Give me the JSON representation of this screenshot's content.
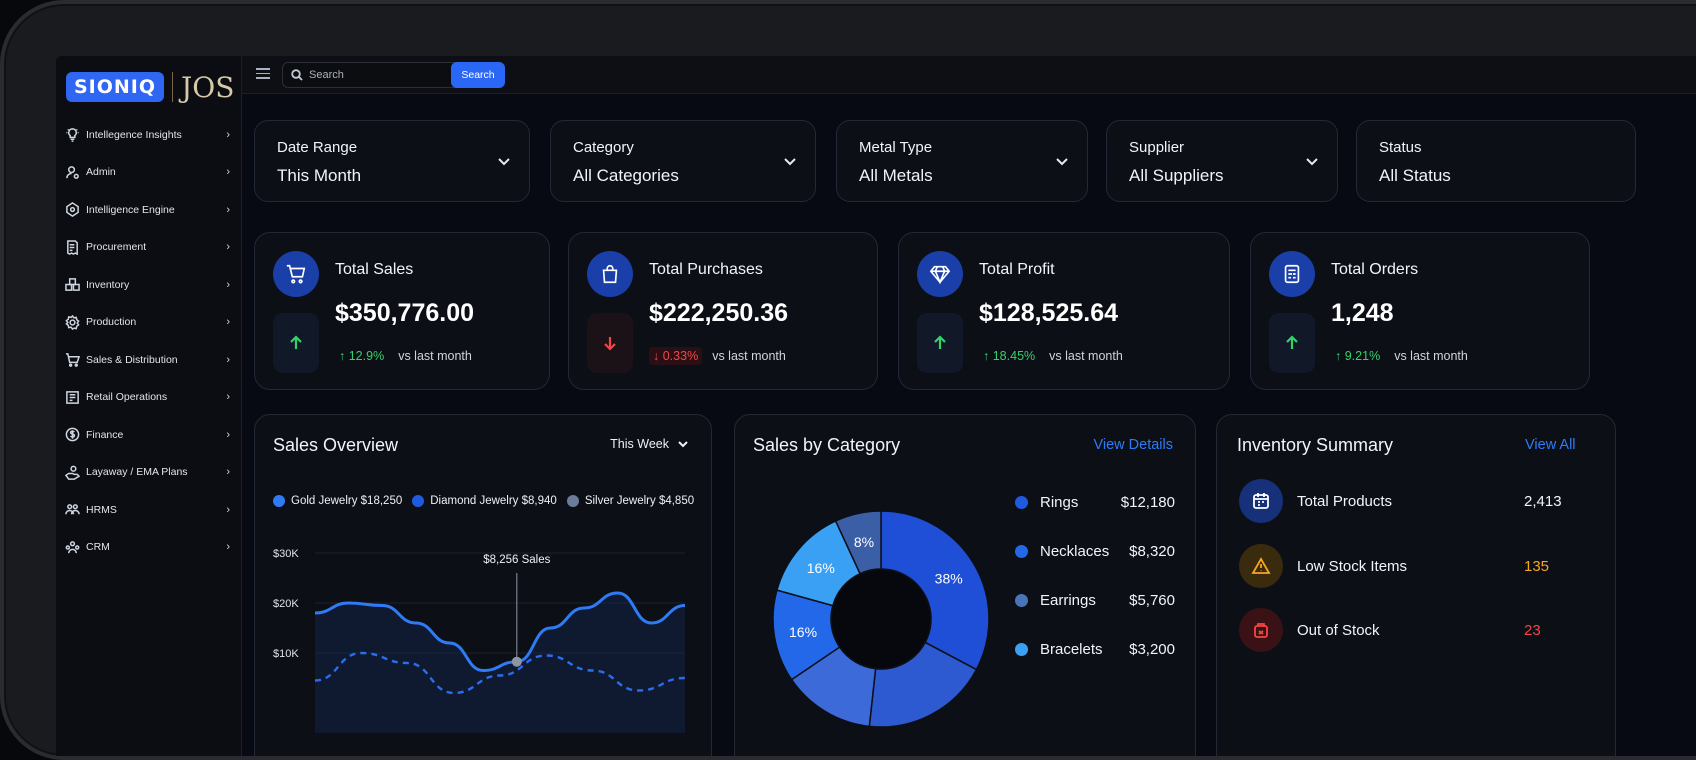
{
  "brand": {
    "logo_main": "SIONIQ",
    "logo_jos": "JOS"
  },
  "sidebar": {
    "items": [
      {
        "label": "Intellegence Insights",
        "icon": "lightbulb-icon"
      },
      {
        "label": "Admin",
        "icon": "user-gear-icon"
      },
      {
        "label": "Intelligence Engine",
        "icon": "network-icon"
      },
      {
        "label": "Procurement",
        "icon": "receipt-icon"
      },
      {
        "label": "Inventory",
        "icon": "boxes-icon"
      },
      {
        "label": "Production",
        "icon": "gear-icon"
      },
      {
        "label": "Sales & Distribution",
        "icon": "cart-icon"
      },
      {
        "label": "Retail Operations",
        "icon": "register-icon"
      },
      {
        "label": "Finance",
        "icon": "dollar-icon"
      },
      {
        "label": "Layaway / EMA Plans",
        "icon": "hand-coin-icon"
      },
      {
        "label": "HRMS",
        "icon": "people-icon"
      },
      {
        "label": "CRM",
        "icon": "group-icon"
      }
    ]
  },
  "topbar": {
    "search_placeholder": "Search",
    "search_button": "Search"
  },
  "filters": [
    {
      "label": "Date Range",
      "value": "This Month"
    },
    {
      "label": "Category",
      "value": "All Categories"
    },
    {
      "label": "Metal Type",
      "value": "All Metals"
    },
    {
      "label": "Supplier",
      "value": "All Suppliers"
    },
    {
      "label": "Status",
      "value": "All Status"
    }
  ],
  "kpis": [
    {
      "title": "Total Sales",
      "value": "$350,776.00",
      "delta": "12.9%",
      "direction": "up",
      "vs": "vs last month",
      "icon": "cart-icon"
    },
    {
      "title": "Total Purchases",
      "value": "$222,250.36",
      "delta": "0.33%",
      "direction": "down",
      "vs": "vs last month",
      "icon": "bag-icon"
    },
    {
      "title": "Total Profit",
      "value": "$128,525.64",
      "delta": "18.45%",
      "direction": "up",
      "vs": "vs last month",
      "icon": "diamond-icon"
    },
    {
      "title": "Total Orders",
      "value": "1,248",
      "delta": "9.21%",
      "direction": "up",
      "vs": "vs last month",
      "icon": "order-list-icon"
    }
  ],
  "sales_overview": {
    "title": "Sales Overview",
    "period": "This Week",
    "legend": [
      {
        "label": "Gold Jewelry $18,250",
        "color": "#2f7bf6"
      },
      {
        "label": "Diamond Jewelry $8,940",
        "color": "#1f5be0"
      },
      {
        "label": "Silver Jewelry $4,850",
        "color": "#6b7b99"
      }
    ],
    "tooltip": "$8,256 Sales",
    "chart_data": {
      "type": "line",
      "yticks": [
        "$30K",
        "$20K",
        "$10K"
      ],
      "ylim": [
        0,
        30000
      ],
      "series": [
        {
          "name": "Gold Jewelry",
          "values": [
            18000,
            20000,
            19500,
            16000,
            12000,
            6500,
            8256,
            15000,
            19000,
            22000,
            16000,
            19500
          ]
        },
        {
          "name": "Diamond Jewelry",
          "values": [
            4500,
            10000,
            8000,
            2000,
            5500,
            9500,
            6500,
            2500,
            5000
          ]
        }
      ]
    }
  },
  "sales_by_category": {
    "title": "Sales by Category",
    "link": "View Details",
    "chart_data": {
      "type": "pie",
      "slices": [
        {
          "label": "38%",
          "value": 38,
          "color": "#1f4fd6"
        },
        {
          "label": "",
          "value": 22,
          "color": "#2d5ad0"
        },
        {
          "label": "",
          "value": 16,
          "color": "#3c6ad8"
        },
        {
          "label": "16%",
          "value": 16,
          "color": "#2368e8"
        },
        {
          "label": "16%",
          "value": 16,
          "color": "#3aa0f4"
        },
        {
          "label": "8%",
          "value": 8,
          "color": "#3b5fa6"
        }
      ]
    },
    "rows": [
      {
        "name": "Rings",
        "value": "$12,180",
        "color": "#1f5be0"
      },
      {
        "name": "Necklaces",
        "value": "$8,320",
        "color": "#2368e8"
      },
      {
        "name": "Earrings",
        "value": "$5,760",
        "color": "#4a73b8"
      },
      {
        "name": "Bracelets",
        "value": "$3,200",
        "color": "#3aa0f4"
      }
    ]
  },
  "inventory_summary": {
    "title": "Inventory Summary",
    "link": "View All",
    "rows": [
      {
        "label": "Total Products",
        "value": "2,413",
        "value_color": "#f2f4f8",
        "icon": "calendar-grid-icon",
        "icon_bg": "#16307a",
        "icon_stroke": "#ffffff"
      },
      {
        "label": "Low Stock Items",
        "value": "135",
        "value_color": "#f5a623",
        "icon": "warning-icon",
        "icon_bg": "#3a2a0e",
        "icon_stroke": "#f5a623"
      },
      {
        "label": "Out of Stock",
        "value": "23",
        "value_color": "#f24646",
        "icon": "stock-box-icon",
        "icon_bg": "#3a1216",
        "icon_stroke": "#f24646"
      }
    ]
  }
}
